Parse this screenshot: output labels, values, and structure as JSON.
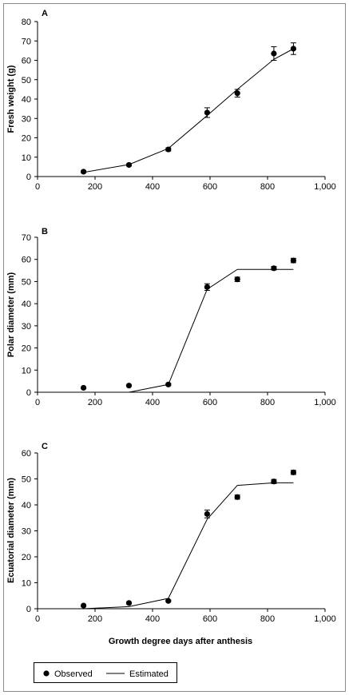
{
  "chart_data": [
    {
      "type": "line",
      "panel_label": "A",
      "ylabel": "Fresh weight (g)",
      "xlabel": "",
      "xlim": [
        0,
        1000
      ],
      "ylim": [
        0,
        80
      ],
      "xticks": [
        0,
        200,
        400,
        600,
        800,
        1000
      ],
      "xtick_labels": [
        "0",
        "200",
        "400",
        "600",
        "800",
        "1,000"
      ],
      "yticks": [
        0,
        10,
        20,
        30,
        40,
        50,
        60,
        70,
        80
      ],
      "ytick_labels": [
        "0",
        "10",
        "20",
        "30",
        "40",
        "50",
        "60",
        "70",
        "80"
      ],
      "grid": false,
      "series": [
        {
          "name": "Observed",
          "kind": "scatter_errorbar",
          "x": [
            160,
            318,
            455,
            590,
            695,
            822,
            890
          ],
          "y": [
            2.5,
            6,
            14,
            33,
            43,
            63.5,
            66
          ],
          "error": [
            0.5,
            0.5,
            0.8,
            2.5,
            2,
            3.5,
            3
          ]
        },
        {
          "name": "Estimated",
          "kind": "line",
          "x": [
            160,
            318,
            455,
            590,
            695,
            822,
            890
          ],
          "y": [
            2.2,
            6.2,
            14.5,
            31.5,
            45,
            60.5,
            66
          ]
        }
      ]
    },
    {
      "type": "line",
      "panel_label": "B",
      "ylabel": "Polar diameter (mm)",
      "xlabel": "",
      "xlim": [
        0,
        1000
      ],
      "ylim": [
        0,
        70
      ],
      "xticks": [
        0,
        200,
        400,
        600,
        800,
        1000
      ],
      "xtick_labels": [
        "0",
        "200",
        "400",
        "600",
        "800",
        "1,000"
      ],
      "yticks": [
        0,
        10,
        20,
        30,
        40,
        50,
        60,
        70
      ],
      "ytick_labels": [
        "0",
        "10",
        "20",
        "30",
        "40",
        "50",
        "60",
        "70"
      ],
      "grid": false,
      "series": [
        {
          "name": "Observed",
          "kind": "scatter_errorbar",
          "x": [
            160,
            318,
            455,
            590,
            695,
            822,
            890
          ],
          "y": [
            2,
            3,
            3.5,
            47.5,
            51,
            56,
            59.5
          ],
          "error": [
            0,
            0,
            0.5,
            1.5,
            1,
            0.8,
            1
          ]
        },
        {
          "name": "Estimated",
          "kind": "line",
          "x": [
            318,
            455,
            590,
            695,
            890
          ],
          "y": [
            0,
            3.5,
            46.5,
            55.5,
            55.5
          ]
        }
      ]
    },
    {
      "type": "line",
      "panel_label": "C",
      "ylabel": "Ecuatorial diameter (mm)",
      "xlabel": "Growth degree days after anthesis",
      "xlim": [
        0,
        1000
      ],
      "ylim": [
        0,
        60
      ],
      "xticks": [
        0,
        200,
        400,
        600,
        800,
        1000
      ],
      "xtick_labels": [
        "0",
        "200",
        "400",
        "600",
        "800",
        "1,000"
      ],
      "yticks": [
        0,
        10,
        20,
        30,
        40,
        50,
        60
      ],
      "ytick_labels": [
        "0",
        "10",
        "20",
        "30",
        "40",
        "50",
        "60"
      ],
      "grid": false,
      "series": [
        {
          "name": "Observed",
          "kind": "scatter_errorbar",
          "x": [
            160,
            318,
            455,
            590,
            695,
            822,
            890
          ],
          "y": [
            1.2,
            2.2,
            3,
            36.5,
            43,
            49,
            52.5
          ],
          "error": [
            0,
            0.3,
            0.3,
            1.5,
            0.8,
            0.8,
            0.8
          ]
        },
        {
          "name": "Estimated",
          "kind": "line",
          "x": [
            160,
            318,
            455,
            590,
            695,
            822,
            890
          ],
          "y": [
            0,
            0.8,
            4,
            34.5,
            47.5,
            48.5,
            48.5
          ]
        }
      ]
    }
  ],
  "legend": {
    "observed_label": "Observed",
    "estimated_label": "Estimated",
    "placement": "bottom-left"
  },
  "colors": {
    "ink": "#000000",
    "frame": "#8a8a8a",
    "background": "#ffffff"
  }
}
